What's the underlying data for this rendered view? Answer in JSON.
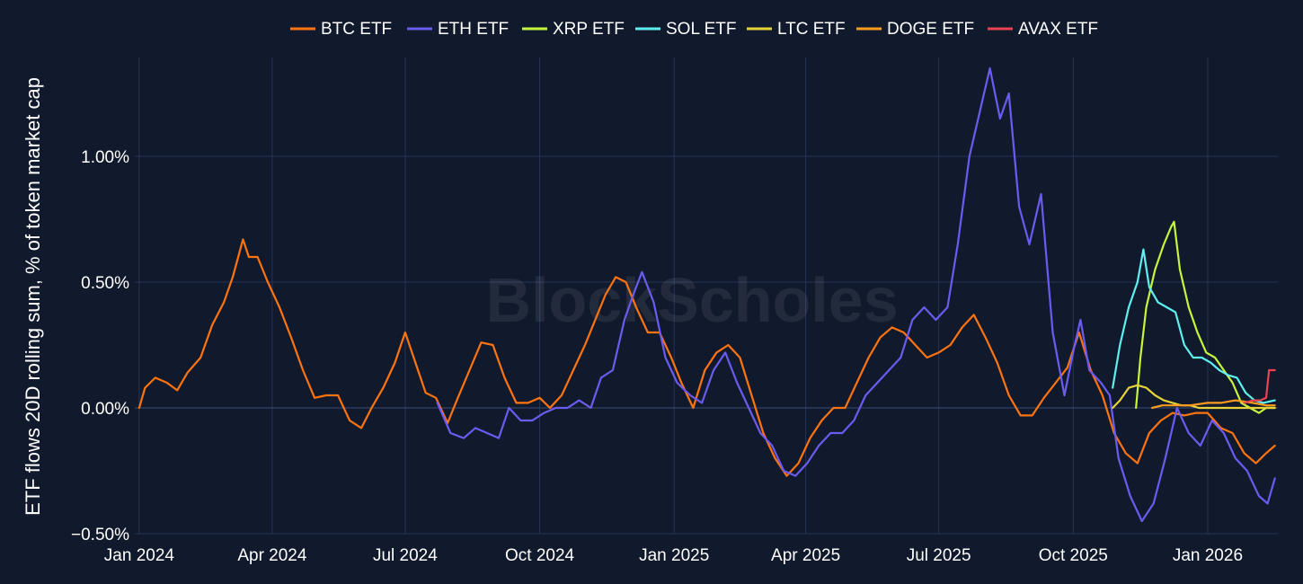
{
  "chart_data": {
    "type": "line",
    "watermark": "BlockScholes",
    "ylabel": "ETF flows 20D rolling sum, % of token market cap",
    "ylim": [
      -0.5,
      1.45
    ],
    "y_ticks": [
      -0.5,
      0.0,
      0.5,
      1.0
    ],
    "y_tick_labels": [
      "−0.50%",
      "0.00%",
      "0.50%",
      "1.00%"
    ],
    "xlim": [
      "2023-12-29",
      "2026-02-18"
    ],
    "x_ticks": [
      "2024-01-01",
      "2024-04-01",
      "2024-07-01",
      "2024-10-01",
      "2025-01-01",
      "2025-04-01",
      "2025-07-01",
      "2025-10-01",
      "2026-01-01"
    ],
    "x_tick_labels": [
      "Jan 2024",
      "Apr 2024",
      "Jul 2024",
      "Oct 2024",
      "Jan 2025",
      "Apr 2025",
      "Jul 2025",
      "Oct 2025",
      "Jan 2026"
    ],
    "grid": true,
    "legend_position": "top",
    "series": [
      {
        "name": "BTC ETF",
        "color": "#ff7410",
        "points": [
          [
            "2024-01-01",
            0.0
          ],
          [
            "2024-01-05",
            0.08
          ],
          [
            "2024-01-12",
            0.12
          ],
          [
            "2024-01-20",
            0.1
          ],
          [
            "2024-01-27",
            0.07
          ],
          [
            "2024-02-03",
            0.14
          ],
          [
            "2024-02-12",
            0.2
          ],
          [
            "2024-02-20",
            0.33
          ],
          [
            "2024-02-28",
            0.42
          ],
          [
            "2024-03-05",
            0.52
          ],
          [
            "2024-03-12",
            0.67
          ],
          [
            "2024-03-16",
            0.6
          ],
          [
            "2024-03-22",
            0.6
          ],
          [
            "2024-03-29",
            0.5
          ],
          [
            "2024-04-06",
            0.4
          ],
          [
            "2024-04-14",
            0.28
          ],
          [
            "2024-04-22",
            0.15
          ],
          [
            "2024-04-30",
            0.04
          ],
          [
            "2024-05-08",
            0.05
          ],
          [
            "2024-05-16",
            0.05
          ],
          [
            "2024-05-24",
            -0.05
          ],
          [
            "2024-06-01",
            -0.08
          ],
          [
            "2024-06-08",
            0.0
          ],
          [
            "2024-06-16",
            0.08
          ],
          [
            "2024-06-24",
            0.18
          ],
          [
            "2024-07-01",
            0.3
          ],
          [
            "2024-07-08",
            0.18
          ],
          [
            "2024-07-15",
            0.06
          ],
          [
            "2024-07-22",
            0.04
          ],
          [
            "2024-07-30",
            -0.06
          ],
          [
            "2024-08-06",
            0.04
          ],
          [
            "2024-08-14",
            0.15
          ],
          [
            "2024-08-22",
            0.26
          ],
          [
            "2024-08-30",
            0.25
          ],
          [
            "2024-09-07",
            0.12
          ],
          [
            "2024-09-15",
            0.02
          ],
          [
            "2024-09-23",
            0.02
          ],
          [
            "2024-10-01",
            0.04
          ],
          [
            "2024-10-08",
            0.0
          ],
          [
            "2024-10-16",
            0.05
          ],
          [
            "2024-10-24",
            0.15
          ],
          [
            "2024-11-01",
            0.25
          ],
          [
            "2024-11-08",
            0.35
          ],
          [
            "2024-11-15",
            0.45
          ],
          [
            "2024-11-22",
            0.52
          ],
          [
            "2024-11-29",
            0.5
          ],
          [
            "2024-12-06",
            0.4
          ],
          [
            "2024-12-14",
            0.3
          ],
          [
            "2024-12-22",
            0.3
          ],
          [
            "2024-12-30",
            0.2
          ],
          [
            "2025-01-06",
            0.1
          ],
          [
            "2025-01-14",
            0.0
          ],
          [
            "2025-01-22",
            0.15
          ],
          [
            "2025-01-30",
            0.22
          ],
          [
            "2025-02-07",
            0.25
          ],
          [
            "2025-02-15",
            0.2
          ],
          [
            "2025-02-23",
            0.05
          ],
          [
            "2025-03-03",
            -0.1
          ],
          [
            "2025-03-11",
            -0.2
          ],
          [
            "2025-03-19",
            -0.27
          ],
          [
            "2025-03-27",
            -0.22
          ],
          [
            "2025-04-04",
            -0.12
          ],
          [
            "2025-04-12",
            -0.05
          ],
          [
            "2025-04-20",
            0.0
          ],
          [
            "2025-04-28",
            0.0
          ],
          [
            "2025-05-06",
            0.1
          ],
          [
            "2025-05-14",
            0.2
          ],
          [
            "2025-05-22",
            0.28
          ],
          [
            "2025-05-30",
            0.32
          ],
          [
            "2025-06-07",
            0.3
          ],
          [
            "2025-06-15",
            0.25
          ],
          [
            "2025-06-23",
            0.2
          ],
          [
            "2025-07-01",
            0.22
          ],
          [
            "2025-07-09",
            0.25
          ],
          [
            "2025-07-17",
            0.32
          ],
          [
            "2025-07-25",
            0.37
          ],
          [
            "2025-08-02",
            0.28
          ],
          [
            "2025-08-10",
            0.18
          ],
          [
            "2025-08-18",
            0.05
          ],
          [
            "2025-08-26",
            -0.03
          ],
          [
            "2025-09-03",
            -0.03
          ],
          [
            "2025-09-11",
            0.04
          ],
          [
            "2025-09-19",
            0.1
          ],
          [
            "2025-09-27",
            0.16
          ],
          [
            "2025-10-05",
            0.3
          ],
          [
            "2025-10-13",
            0.15
          ],
          [
            "2025-10-21",
            0.05
          ],
          [
            "2025-10-29",
            -0.1
          ],
          [
            "2025-11-06",
            -0.18
          ],
          [
            "2025-11-14",
            -0.22
          ],
          [
            "2025-11-22",
            -0.1
          ],
          [
            "2025-11-30",
            -0.05
          ],
          [
            "2025-12-08",
            -0.02
          ],
          [
            "2025-12-16",
            -0.03
          ],
          [
            "2025-12-24",
            -0.02
          ],
          [
            "2026-01-01",
            -0.02
          ],
          [
            "2026-01-10",
            -0.08
          ],
          [
            "2026-01-18",
            -0.1
          ],
          [
            "2026-01-26",
            -0.18
          ],
          [
            "2026-02-03",
            -0.22
          ],
          [
            "2026-02-10",
            -0.18
          ],
          [
            "2026-02-16",
            -0.15
          ]
        ]
      },
      {
        "name": "ETH ETF",
        "color": "#6b5bf0",
        "points": [
          [
            "2024-07-23",
            0.02
          ],
          [
            "2024-08-01",
            -0.1
          ],
          [
            "2024-08-10",
            -0.12
          ],
          [
            "2024-08-18",
            -0.08
          ],
          [
            "2024-08-26",
            -0.1
          ],
          [
            "2024-09-03",
            -0.12
          ],
          [
            "2024-09-10",
            0.0
          ],
          [
            "2024-09-18",
            -0.05
          ],
          [
            "2024-09-26",
            -0.05
          ],
          [
            "2024-10-04",
            -0.02
          ],
          [
            "2024-10-12",
            0.0
          ],
          [
            "2024-10-20",
            0.0
          ],
          [
            "2024-10-28",
            0.03
          ],
          [
            "2024-11-05",
            0.0
          ],
          [
            "2024-11-12",
            0.12
          ],
          [
            "2024-11-20",
            0.15
          ],
          [
            "2024-11-28",
            0.35
          ],
          [
            "2024-12-04",
            0.45
          ],
          [
            "2024-12-10",
            0.54
          ],
          [
            "2024-12-18",
            0.42
          ],
          [
            "2024-12-26",
            0.2
          ],
          [
            "2025-01-03",
            0.1
          ],
          [
            "2025-01-12",
            0.05
          ],
          [
            "2025-01-20",
            0.02
          ],
          [
            "2025-01-28",
            0.15
          ],
          [
            "2025-02-05",
            0.22
          ],
          [
            "2025-02-13",
            0.1
          ],
          [
            "2025-02-21",
            0.0
          ],
          [
            "2025-03-01",
            -0.1
          ],
          [
            "2025-03-09",
            -0.15
          ],
          [
            "2025-03-17",
            -0.25
          ],
          [
            "2025-03-25",
            -0.27
          ],
          [
            "2025-04-02",
            -0.22
          ],
          [
            "2025-04-10",
            -0.15
          ],
          [
            "2025-04-18",
            -0.1
          ],
          [
            "2025-04-26",
            -0.1
          ],
          [
            "2025-05-04",
            -0.05
          ],
          [
            "2025-05-12",
            0.05
          ],
          [
            "2025-05-20",
            0.1
          ],
          [
            "2025-05-28",
            0.15
          ],
          [
            "2025-06-05",
            0.2
          ],
          [
            "2025-06-13",
            0.35
          ],
          [
            "2025-06-21",
            0.4
          ],
          [
            "2025-06-29",
            0.35
          ],
          [
            "2025-07-07",
            0.4
          ],
          [
            "2025-07-14",
            0.65
          ],
          [
            "2025-07-22",
            1.0
          ],
          [
            "2025-07-30",
            1.2
          ],
          [
            "2025-08-05",
            1.35
          ],
          [
            "2025-08-12",
            1.15
          ],
          [
            "2025-08-18",
            1.25
          ],
          [
            "2025-08-25",
            0.8
          ],
          [
            "2025-09-01",
            0.65
          ],
          [
            "2025-09-09",
            0.85
          ],
          [
            "2025-09-17",
            0.3
          ],
          [
            "2025-09-25",
            0.05
          ],
          [
            "2025-10-02",
            0.25
          ],
          [
            "2025-10-06",
            0.35
          ],
          [
            "2025-10-12",
            0.15
          ],
          [
            "2025-10-20",
            0.1
          ],
          [
            "2025-10-26",
            0.05
          ],
          [
            "2025-11-01",
            -0.2
          ],
          [
            "2025-11-09",
            -0.35
          ],
          [
            "2025-11-17",
            -0.45
          ],
          [
            "2025-11-25",
            -0.38
          ],
          [
            "2025-12-03",
            -0.2
          ],
          [
            "2025-12-11",
            0.0
          ],
          [
            "2025-12-19",
            -0.1
          ],
          [
            "2025-12-27",
            -0.15
          ],
          [
            "2026-01-04",
            -0.05
          ],
          [
            "2026-01-12",
            -0.1
          ],
          [
            "2026-01-20",
            -0.2
          ],
          [
            "2026-01-28",
            -0.25
          ],
          [
            "2026-02-05",
            -0.35
          ],
          [
            "2026-02-11",
            -0.38
          ],
          [
            "2026-02-16",
            -0.28
          ]
        ]
      },
      {
        "name": "XRP ETF",
        "color": "#c5f53c",
        "points": [
          [
            "2025-11-13",
            0.0
          ],
          [
            "2025-11-16",
            0.2
          ],
          [
            "2025-11-20",
            0.4
          ],
          [
            "2025-11-26",
            0.55
          ],
          [
            "2025-12-02",
            0.65
          ],
          [
            "2025-12-07",
            0.72
          ],
          [
            "2025-12-09",
            0.74
          ],
          [
            "2025-12-13",
            0.55
          ],
          [
            "2025-12-19",
            0.4
          ],
          [
            "2025-12-25",
            0.3
          ],
          [
            "2025-12-31",
            0.22
          ],
          [
            "2026-01-06",
            0.2
          ],
          [
            "2026-01-12",
            0.15
          ],
          [
            "2026-01-18",
            0.1
          ],
          [
            "2026-01-24",
            0.02
          ],
          [
            "2026-01-30",
            0.0
          ],
          [
            "2026-02-05",
            -0.02
          ],
          [
            "2026-02-10",
            0.0
          ],
          [
            "2026-02-16",
            0.0
          ]
        ]
      },
      {
        "name": "SOL ETF",
        "color": "#5ef0f0",
        "points": [
          [
            "2025-10-28",
            0.08
          ],
          [
            "2025-11-02",
            0.25
          ],
          [
            "2025-11-08",
            0.4
          ],
          [
            "2025-11-14",
            0.5
          ],
          [
            "2025-11-18",
            0.63
          ],
          [
            "2025-11-22",
            0.48
          ],
          [
            "2025-11-28",
            0.42
          ],
          [
            "2025-12-04",
            0.4
          ],
          [
            "2025-12-10",
            0.38
          ],
          [
            "2025-12-16",
            0.25
          ],
          [
            "2025-12-22",
            0.2
          ],
          [
            "2025-12-28",
            0.2
          ],
          [
            "2026-01-03",
            0.18
          ],
          [
            "2026-01-09",
            0.15
          ],
          [
            "2026-01-15",
            0.13
          ],
          [
            "2026-01-21",
            0.12
          ],
          [
            "2026-01-27",
            0.06
          ],
          [
            "2026-02-02",
            0.03
          ],
          [
            "2026-02-08",
            0.02
          ],
          [
            "2026-02-16",
            0.03
          ]
        ]
      },
      {
        "name": "LTC ETF",
        "color": "#e6d33a",
        "points": [
          [
            "2025-10-28",
            0.0
          ],
          [
            "2025-11-02",
            0.03
          ],
          [
            "2025-11-08",
            0.08
          ],
          [
            "2025-11-14",
            0.09
          ],
          [
            "2025-11-20",
            0.08
          ],
          [
            "2025-11-26",
            0.05
          ],
          [
            "2025-12-02",
            0.03
          ],
          [
            "2025-12-08",
            0.02
          ],
          [
            "2025-12-14",
            0.01
          ],
          [
            "2025-12-20",
            0.01
          ],
          [
            "2025-12-26",
            0.0
          ],
          [
            "2026-01-01",
            0.0
          ],
          [
            "2026-01-10",
            0.0
          ],
          [
            "2026-01-20",
            0.0
          ],
          [
            "2026-02-01",
            0.0
          ],
          [
            "2026-02-16",
            0.0
          ]
        ]
      },
      {
        "name": "DOGE ETF",
        "color": "#ff9b1f",
        "points": [
          [
            "2025-11-24",
            0.0
          ],
          [
            "2025-12-01",
            0.01
          ],
          [
            "2025-12-10",
            0.01
          ],
          [
            "2025-12-20",
            0.01
          ],
          [
            "2026-01-01",
            0.02
          ],
          [
            "2026-01-10",
            0.02
          ],
          [
            "2026-01-20",
            0.03
          ],
          [
            "2026-02-01",
            0.02
          ],
          [
            "2026-02-10",
            0.01
          ],
          [
            "2026-02-16",
            0.01
          ]
        ]
      },
      {
        "name": "AVAX ETF",
        "color": "#e8434f",
        "points": [
          [
            "2026-01-26",
            0.02
          ],
          [
            "2026-02-01",
            0.03
          ],
          [
            "2026-02-06",
            0.03
          ],
          [
            "2026-02-10",
            0.04
          ],
          [
            "2026-02-12",
            0.15
          ],
          [
            "2026-02-16",
            0.15
          ]
        ]
      }
    ]
  }
}
